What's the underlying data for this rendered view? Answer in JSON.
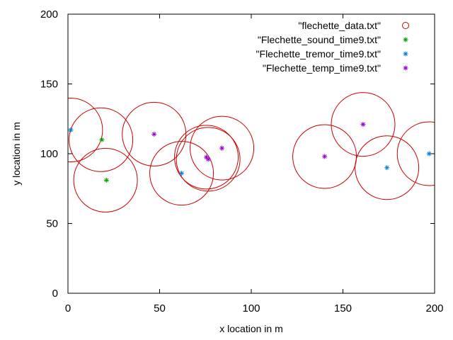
{
  "chart_data": {
    "type": "scatter",
    "title": "",
    "xlabel": "x location in m",
    "ylabel": "y location in m",
    "xlim": [
      0,
      200
    ],
    "ylim": [
      0,
      200
    ],
    "xticks": [
      0,
      50,
      100,
      150,
      200
    ],
    "yticks": [
      0,
      50,
      100,
      150,
      200
    ],
    "grid": false,
    "legend_position": "top-right",
    "series": [
      {
        "name": "\"flechette_data.txt\"",
        "marker": "circle",
        "color": "#cc0000",
        "points": [
          {
            "x": 1.5,
            "y": 117
          },
          {
            "x": 18,
            "y": 110
          },
          {
            "x": 20.5,
            "y": 81
          },
          {
            "x": 47,
            "y": 114
          },
          {
            "x": 62,
            "y": 86
          },
          {
            "x": 75.5,
            "y": 97.5
          },
          {
            "x": 76.5,
            "y": 96
          },
          {
            "x": 84,
            "y": 104
          },
          {
            "x": 140,
            "y": 98
          },
          {
            "x": 161,
            "y": 121
          },
          {
            "x": 174,
            "y": 90
          },
          {
            "x": 197,
            "y": 100
          }
        ]
      },
      {
        "name": "\"Flechette_sound_time9.txt\"",
        "marker": "star",
        "color": "#00a000",
        "points": [
          {
            "x": 18.5,
            "y": 110
          },
          {
            "x": 21,
            "y": 81
          }
        ]
      },
      {
        "name": "\"Flechette_tremor_time9.txt\"",
        "marker": "star",
        "color": "#0080e0",
        "points": [
          {
            "x": 1.5,
            "y": 117
          },
          {
            "x": 62,
            "y": 86
          },
          {
            "x": 174,
            "y": 90
          },
          {
            "x": 197,
            "y": 100
          }
        ]
      },
      {
        "name": "\"Flechette_temp_time9.txt\"",
        "marker": "star",
        "color": "#9500d3",
        "points": [
          {
            "x": 47,
            "y": 114
          },
          {
            "x": 75.5,
            "y": 97.5
          },
          {
            "x": 76.5,
            "y": 96
          },
          {
            "x": 84,
            "y": 104
          },
          {
            "x": 140,
            "y": 98
          },
          {
            "x": 161,
            "y": 121
          }
        ]
      }
    ]
  }
}
